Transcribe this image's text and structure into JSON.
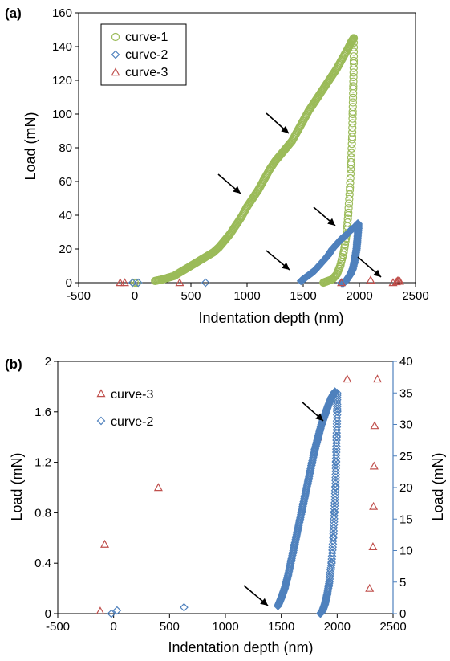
{
  "chart_data": [
    {
      "panel_label": "(a)",
      "type": "scatter",
      "xlabel": "Indentation depth (nm)",
      "ylabel": "Load (mN)",
      "xlim": [
        -500,
        2500
      ],
      "ylim": [
        0,
        160
      ],
      "xticks": [
        -500,
        0,
        500,
        1000,
        1500,
        2000,
        2500
      ],
      "yticks": [
        0,
        20,
        40,
        60,
        80,
        100,
        120,
        140,
        160
      ],
      "legend_position": "top-left",
      "grid": false,
      "series": [
        {
          "name": "curve-1",
          "marker": "circle",
          "color": "#9bbb59",
          "loading": [
            [
              180,
              1
            ],
            [
              250,
              2
            ],
            [
              300,
              3
            ],
            [
              350,
              4
            ],
            [
              400,
              6
            ],
            [
              450,
              8
            ],
            [
              500,
              10
            ],
            [
              550,
              12
            ],
            [
              600,
              14
            ],
            [
              650,
              16
            ],
            [
              700,
              18
            ],
            [
              750,
              21
            ],
            [
              800,
              25
            ],
            [
              850,
              29
            ],
            [
              900,
              34
            ],
            [
              950,
              39
            ],
            [
              1000,
              45
            ],
            [
              1050,
              50
            ],
            [
              1100,
              55
            ],
            [
              1150,
              61
            ],
            [
              1200,
              67
            ],
            [
              1250,
              72
            ],
            [
              1300,
              76
            ],
            [
              1350,
              80
            ],
            [
              1400,
              84
            ],
            [
              1450,
              90
            ],
            [
              1500,
              96
            ],
            [
              1550,
              102
            ],
            [
              1600,
              107
            ],
            [
              1650,
              112
            ],
            [
              1700,
              117
            ],
            [
              1750,
              122
            ],
            [
              1800,
              127
            ],
            [
              1850,
              133
            ],
            [
              1900,
              139
            ],
            [
              1930,
              143
            ],
            [
              1950,
              145
            ]
          ],
          "unloading": [
            [
              1950,
              145
            ],
            [
              1950,
              130
            ],
            [
              1945,
              115
            ],
            [
              1940,
              100
            ],
            [
              1935,
              85
            ],
            [
              1925,
              70
            ],
            [
              1915,
              55
            ],
            [
              1900,
              40
            ],
            [
              1885,
              28
            ],
            [
              1860,
              18
            ],
            [
              1830,
              10
            ],
            [
              1800,
              5
            ],
            [
              1760,
              2
            ],
            [
              1720,
              1
            ],
            [
              1680,
              0
            ]
          ],
          "sparse": [
            [
              0,
              0
            ],
            [
              20,
              0
            ]
          ]
        },
        {
          "name": "curve-2",
          "marker": "diamond",
          "color": "#4f81bd",
          "loading": [
            [
              1480,
              1
            ],
            [
              1520,
              3
            ],
            [
              1560,
              5
            ],
            [
              1600,
              7
            ],
            [
              1640,
              10
            ],
            [
              1680,
              13
            ],
            [
              1720,
              16
            ],
            [
              1760,
              20
            ],
            [
              1800,
              23
            ],
            [
              1840,
              26
            ],
            [
              1880,
              28
            ],
            [
              1920,
              31
            ],
            [
              1960,
              33
            ],
            [
              1985,
              35
            ]
          ],
          "unloading": [
            [
              1990,
              35
            ],
            [
              1990,
              32
            ],
            [
              1985,
              28
            ],
            [
              1980,
              24
            ],
            [
              1975,
              20
            ],
            [
              1965,
              16
            ],
            [
              1955,
              12
            ],
            [
              1940,
              8
            ],
            [
              1920,
              5
            ],
            [
              1900,
              3
            ],
            [
              1880,
              1
            ],
            [
              1860,
              0
            ],
            [
              1840,
              0
            ]
          ],
          "sparse": [
            [
              -20,
              0
            ],
            [
              30,
              0
            ],
            [
              630,
              0
            ]
          ]
        },
        {
          "name": "curve-3",
          "marker": "triangle",
          "color": "#c0504d",
          "points": [
            [
              -130,
              0
            ],
            [
              -90,
              0
            ],
            [
              400,
              0
            ],
            [
              1840,
              0
            ],
            [
              2100,
              1.5
            ],
            [
              2300,
              0
            ],
            [
              2330,
              0.5
            ],
            [
              2340,
              1
            ],
            [
              2350,
              1.2
            ],
            [
              2360,
              0.8
            ]
          ]
        }
      ],
      "annotations": "five arrows pointing to curve features"
    },
    {
      "panel_label": "(b)",
      "type": "scatter",
      "xlabel": "Indentation depth (nm)",
      "ylabel": "Load (mN)",
      "y2label": "Load (mN)",
      "xlim": [
        -500,
        2500
      ],
      "ylim": [
        0,
        2
      ],
      "y2lim": [
        0,
        40
      ],
      "xticks": [
        -500,
        0,
        500,
        1000,
        1500,
        2000,
        2500
      ],
      "yticks": [
        0,
        0.4,
        0.8,
        1.2,
        1.6,
        2
      ],
      "y2ticks": [
        0,
        5,
        10,
        15,
        20,
        25,
        30,
        35,
        40
      ],
      "legend_position": "top-left",
      "grid": false,
      "series": [
        {
          "name": "curve-3",
          "marker": "triangle",
          "color": "#c0504d",
          "axis": "left",
          "points": [
            [
              -120,
              0.02
            ],
            [
              -80,
              0.55
            ],
            [
              400,
              1.0
            ],
            [
              1830,
              1.4
            ],
            [
              2090,
              1.86
            ],
            [
              2290,
              0.2
            ],
            [
              2320,
              0.53
            ],
            [
              2325,
              0.85
            ],
            [
              2330,
              1.17
            ],
            [
              2335,
              1.49
            ],
            [
              2360,
              1.86
            ]
          ]
        },
        {
          "name": "curve-2",
          "marker": "diamond",
          "color": "#4f81bd",
          "axis": "right",
          "loading": [
            [
              1470,
              1.2
            ],
            [
              1500,
              2.5
            ],
            [
              1530,
              4
            ],
            [
              1560,
              6
            ],
            [
              1590,
              8.5
            ],
            [
              1620,
              11
            ],
            [
              1650,
              13.5
            ],
            [
              1680,
              16
            ],
            [
              1710,
              18.5
            ],
            [
              1740,
              21
            ],
            [
              1770,
              23.5
            ],
            [
              1800,
              26
            ],
            [
              1830,
              28
            ],
            [
              1860,
              30
            ],
            [
              1890,
              31.5
            ],
            [
              1920,
              33
            ],
            [
              1950,
              34.3
            ],
            [
              1980,
              35.2
            ]
          ],
          "unloading": [
            [
              2000,
              35
            ],
            [
              2000,
              32
            ],
            [
              1995,
              28
            ],
            [
              1990,
              24
            ],
            [
              1985,
              20
            ],
            [
              1975,
              16
            ],
            [
              1965,
              12
            ],
            [
              1950,
              8
            ],
            [
              1930,
              5
            ],
            [
              1910,
              3
            ],
            [
              1890,
              1.5
            ],
            [
              1870,
              0.5
            ],
            [
              1850,
              0
            ]
          ],
          "sparse": [
            [
              -20,
              0
            ],
            [
              30,
              0.5
            ],
            [
              630,
              1
            ]
          ]
        }
      ],
      "annotations": "two arrows pointing to curve-2 features"
    }
  ],
  "colors": {
    "curve1": "#9bbb59",
    "curve2": "#4f81bd",
    "curve3": "#c0504d",
    "right_axis": "#4f81bd"
  }
}
